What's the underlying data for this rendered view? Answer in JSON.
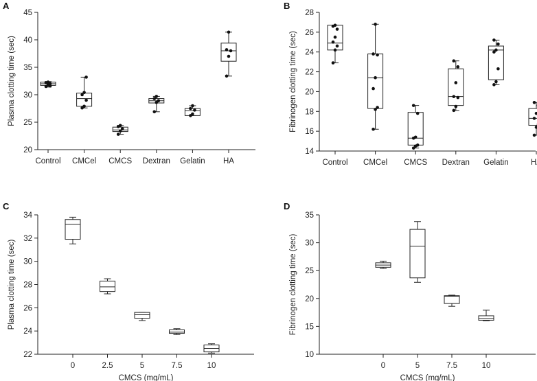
{
  "chart_data": [
    {
      "panel": "A",
      "type": "box",
      "ylabel": "Plasma clotting time (sec)",
      "xlabel": "",
      "ylim": [
        20,
        45
      ],
      "yticks": [
        20,
        25,
        30,
        35,
        40,
        45
      ],
      "categories": [
        "Control",
        "CMCel",
        "CMCS",
        "Dextran",
        "Gelatin",
        "HA"
      ],
      "boxes": [
        {
          "min": 31.4,
          "q1": 31.7,
          "median": 32.0,
          "q3": 32.3,
          "max": 32.4
        },
        {
          "min": 27.6,
          "q1": 27.9,
          "median": 29.3,
          "q3": 30.3,
          "max": 33.2
        },
        {
          "min": 22.8,
          "q1": 23.3,
          "median": 23.6,
          "q3": 24.1,
          "max": 24.4
        },
        {
          "min": 26.9,
          "q1": 28.5,
          "median": 28.9,
          "q3": 29.3,
          "max": 29.7
        },
        {
          "min": 26.2,
          "q1": 26.2,
          "median": 27.1,
          "q3": 27.5,
          "max": 28.0
        },
        {
          "min": 33.4,
          "q1": 36.1,
          "median": 38.0,
          "q3": 39.4,
          "max": 41.4
        }
      ],
      "points": [
        [
          31.5,
          31.8,
          32.0,
          32.2,
          32.3,
          31.6
        ],
        [
          27.6,
          27.9,
          29.0,
          30.0,
          30.4,
          33.2
        ],
        [
          22.8,
          23.4,
          23.8,
          24.2,
          24.4
        ],
        [
          26.9,
          28.6,
          28.9,
          29.3,
          29.7
        ],
        [
          26.2,
          26.5,
          27.2,
          27.5,
          28.0
        ],
        [
          33.4,
          37.0,
          38.0,
          38.2,
          41.4
        ]
      ]
    },
    {
      "panel": "B",
      "type": "box",
      "ylabel": "Fibrinogen clotting time (sec)",
      "xlabel": "",
      "ylim": [
        14,
        28
      ],
      "yticks": [
        14,
        16,
        18,
        20,
        22,
        24,
        26,
        28
      ],
      "categories": [
        "Control",
        "CMCel",
        "CMCS",
        "Dextran",
        "Gelatin",
        "HA"
      ],
      "boxes": [
        {
          "min": 22.9,
          "q1": 24.2,
          "median": 24.9,
          "q3": 26.7,
          "max": 26.7
        },
        {
          "min": 16.2,
          "q1": 18.3,
          "median": 21.4,
          "q3": 23.8,
          "max": 26.8
        },
        {
          "min": 14.3,
          "q1": 14.6,
          "median": 15.3,
          "q3": 17.9,
          "max": 18.6
        },
        {
          "min": 18.1,
          "q1": 18.6,
          "median": 19.5,
          "q3": 22.3,
          "max": 23.1
        },
        {
          "min": 20.7,
          "q1": 21.2,
          "median": 24.2,
          "q3": 24.6,
          "max": 25.2
        },
        {
          "min": 15.6,
          "q1": 16.6,
          "median": 17.3,
          "q3": 18.3,
          "max": 18.9
        }
      ],
      "points": [
        [
          22.9,
          24.2,
          24.6,
          25.0,
          25.5,
          26.3,
          26.6,
          26.7
        ],
        [
          16.2,
          18.2,
          18.4,
          20.3,
          21.4,
          23.7,
          23.8,
          26.8
        ],
        [
          14.3,
          14.5,
          14.6,
          15.3,
          15.4,
          17.8,
          18.6
        ],
        [
          18.1,
          18.5,
          19.4,
          19.5,
          20.9,
          22.5,
          23.1
        ],
        [
          20.7,
          21.0,
          22.3,
          24.0,
          24.2,
          24.8,
          25.2
        ],
        [
          15.6,
          16.4,
          16.7,
          17.3,
          17.8,
          18.6,
          18.9
        ]
      ]
    },
    {
      "panel": "C",
      "type": "box",
      "ylabel": "Plasma clotting time (sec)",
      "xlabel": "CMCS (mg/mL)",
      "ylim": [
        22,
        34
      ],
      "yticks": [
        22,
        24,
        26,
        28,
        30,
        32,
        34
      ],
      "categories": [
        "0",
        "2.5",
        "5",
        "7.5",
        "10"
      ],
      "boxes": [
        {
          "min": 31.5,
          "q1": 31.9,
          "median": 33.2,
          "q3": 33.6,
          "max": 33.8
        },
        {
          "min": 27.2,
          "q1": 27.4,
          "median": 27.8,
          "q3": 28.3,
          "max": 28.5
        },
        {
          "min": 24.9,
          "q1": 25.1,
          "median": 25.4,
          "q3": 25.6,
          "max": 25.6
        },
        {
          "min": 23.7,
          "q1": 23.8,
          "median": 23.9,
          "q3": 24.1,
          "max": 24.2
        },
        {
          "min": 22.1,
          "q1": 22.2,
          "median": 22.5,
          "q3": 22.8,
          "max": 22.9
        }
      ],
      "points": []
    },
    {
      "panel": "D",
      "type": "box",
      "ylabel": "Fibrinogen clotting time (sec)",
      "xlabel": "CMCS (mg/mL)",
      "ylim": [
        10,
        35
      ],
      "yticks": [
        10,
        15,
        20,
        25,
        30,
        35
      ],
      "categories": [
        "0",
        "5",
        "7.5",
        "10"
      ],
      "boxes": [
        {
          "min": 25.4,
          "q1": 25.6,
          "median": 26.0,
          "q3": 26.4,
          "max": 26.7
        },
        {
          "min": 22.9,
          "q1": 23.7,
          "median": 29.4,
          "q3": 32.4,
          "max": 33.8
        },
        {
          "min": 18.6,
          "q1": 19.1,
          "median": 20.4,
          "q3": 20.5,
          "max": 20.6
        },
        {
          "min": 16.0,
          "q1": 16.1,
          "median": 16.4,
          "q3": 16.9,
          "max": 17.9
        }
      ],
      "points": []
    }
  ]
}
